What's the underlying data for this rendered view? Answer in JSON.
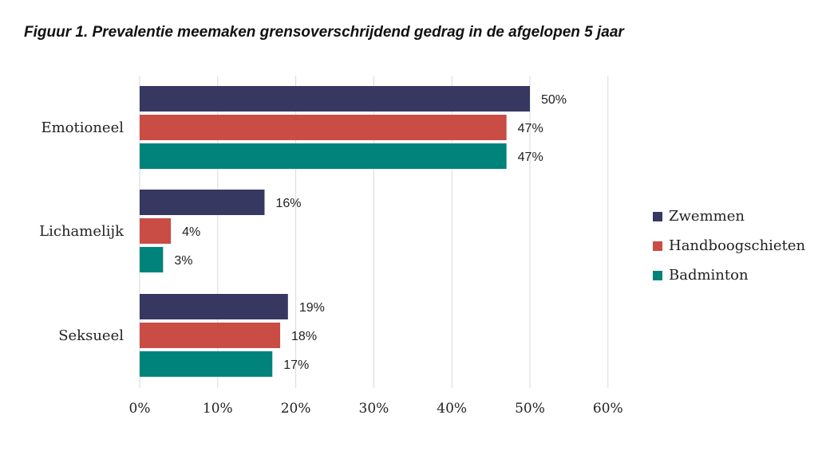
{
  "chart_data": {
    "type": "bar",
    "orientation": "horizontal",
    "title": "Figuur 1. Prevalentie meemaken grensoverschrijdend gedrag in de afgelopen 5 jaar",
    "xlabel": "",
    "ylabel": "",
    "categories": [
      "Emotioneel",
      "Lichamelijk",
      "Seksueel"
    ],
    "series": [
      {
        "name": "Zwemmen",
        "color": "#363862",
        "values": [
          50,
          16,
          19
        ],
        "labels": [
          "50%",
          "16%",
          "19%"
        ]
      },
      {
        "name": "Handboogschieten",
        "color": "#c94c45",
        "values": [
          47,
          4,
          18
        ],
        "labels": [
          "47%",
          "4%",
          "18%"
        ]
      },
      {
        "name": "Badminton",
        "color": "#00837a",
        "values": [
          47,
          3,
          17
        ],
        "labels": [
          "47%",
          "3%",
          "17%"
        ]
      }
    ],
    "xlim": [
      0,
      60
    ],
    "xticks": [
      0,
      10,
      20,
      30,
      40,
      50,
      60
    ],
    "xtick_labels": [
      "0%",
      "10%",
      "20%",
      "30%",
      "40%",
      "50%",
      "60%"
    ],
    "grid": true,
    "legend_position": "right"
  }
}
